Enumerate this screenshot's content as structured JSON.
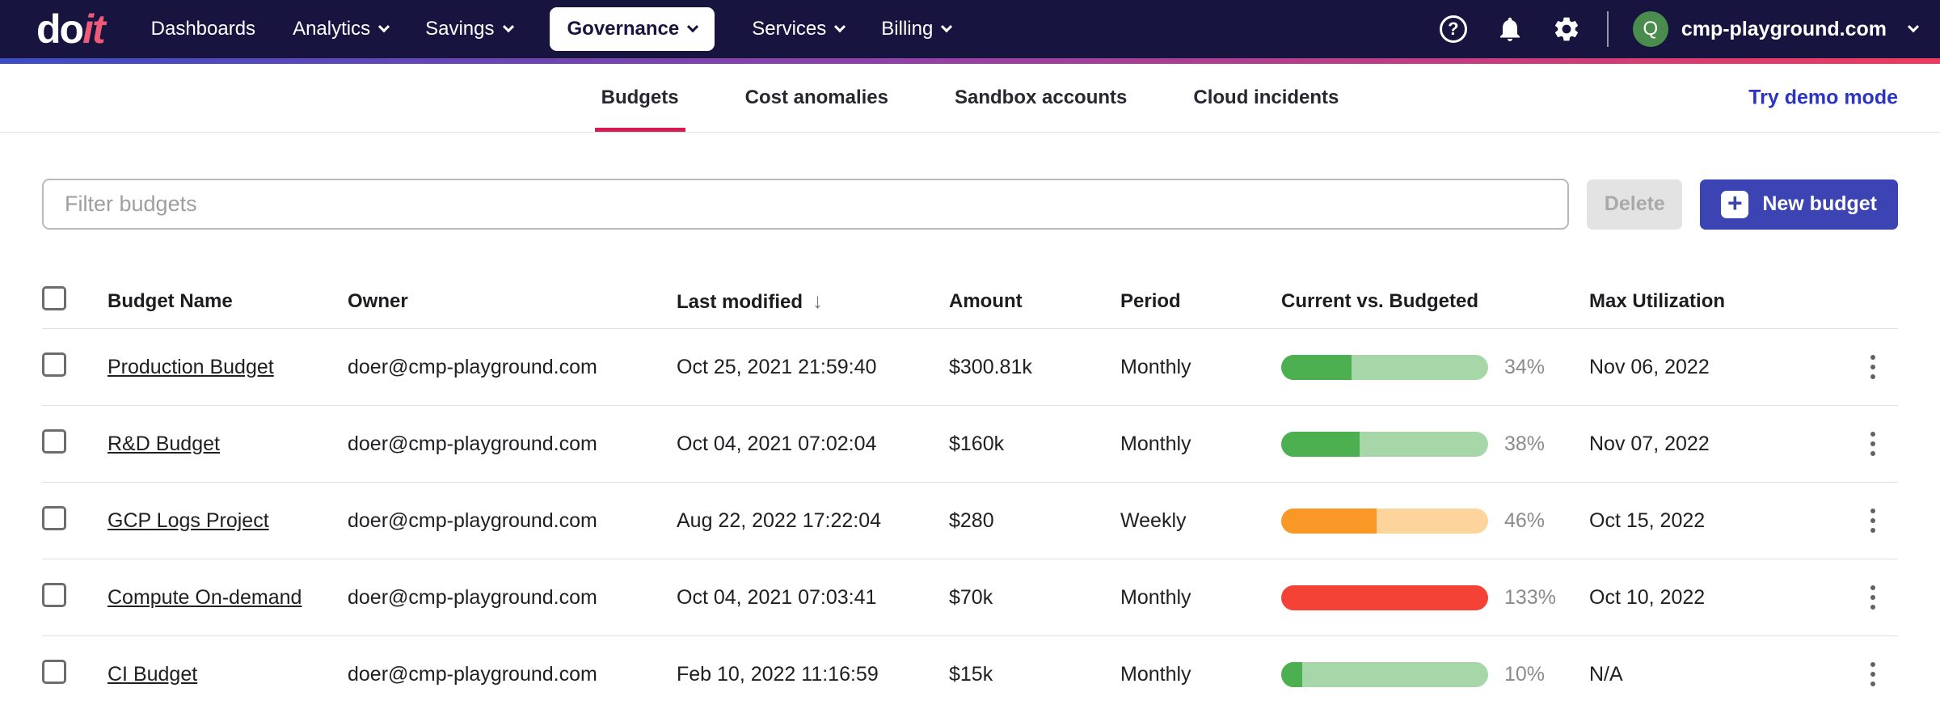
{
  "navbar": {
    "logo": {
      "part1": "do",
      "part2": "it"
    },
    "items": [
      {
        "label": "Dashboards",
        "dropdown": false,
        "active": false
      },
      {
        "label": "Analytics",
        "dropdown": true,
        "active": false
      },
      {
        "label": "Savings",
        "dropdown": true,
        "active": false
      },
      {
        "label": "Governance",
        "dropdown": true,
        "active": true
      },
      {
        "label": "Services",
        "dropdown": true,
        "active": false
      },
      {
        "label": "Billing",
        "dropdown": true,
        "active": false
      }
    ],
    "icons": [
      "help-icon",
      "notifications-bell-icon",
      "settings-gear-icon"
    ],
    "account": {
      "avatar_letter": "Q",
      "name": "cmp-playground.com"
    }
  },
  "tabs": {
    "items": [
      "Budgets",
      "Cost anomalies",
      "Sandbox accounts",
      "Cloud incidents"
    ],
    "active": "Budgets",
    "demo_link": "Try demo mode"
  },
  "toolbar": {
    "filter_placeholder": "Filter budgets",
    "delete_label": "Delete",
    "new_budget_label": "New budget"
  },
  "table": {
    "headers": [
      "Budget Name",
      "Owner",
      "Last modified",
      "Amount",
      "Period",
      "Current vs. Budgeted",
      "Max Utilization"
    ],
    "sort_column": "Last modified",
    "sort_direction": "desc",
    "sort_glyph": "↓",
    "rows": [
      {
        "name": "Production Budget",
        "owner": "doer@cmp-playground.com",
        "last_modified": "Oct 25, 2021 21:59:40",
        "amount": "$300.81k",
        "period": "Monthly",
        "percent": "34%",
        "percent_value": 34,
        "bar_color": "green",
        "max_utilization": "Nov 06, 2022"
      },
      {
        "name": "R&D Budget",
        "owner": "doer@cmp-playground.com",
        "last_modified": "Oct 04, 2021 07:02:04",
        "amount": "$160k",
        "period": "Monthly",
        "percent": "38%",
        "percent_value": 38,
        "bar_color": "green",
        "max_utilization": "Nov 07, 2022"
      },
      {
        "name": "GCP Logs Project",
        "owner": "doer@cmp-playground.com",
        "last_modified": "Aug 22, 2022 17:22:04",
        "amount": "$280",
        "period": "Weekly",
        "percent": "46%",
        "percent_value": 46,
        "bar_color": "orange",
        "max_utilization": "Oct 15, 2022"
      },
      {
        "name": "Compute On-demand",
        "owner": "doer@cmp-playground.com",
        "last_modified": "Oct 04, 2021 07:03:41",
        "amount": "$70k",
        "period": "Monthly",
        "percent": "133%",
        "percent_value": 133,
        "bar_color": "red",
        "max_utilization": "Oct 10, 2022"
      },
      {
        "name": "CI Budget",
        "owner": "doer@cmp-playground.com",
        "last_modified": "Feb 10, 2022 11:16:59",
        "amount": "$15k",
        "period": "Monthly",
        "percent": "10%",
        "percent_value": 10,
        "bar_color": "green",
        "max_utilization": "N/A"
      }
    ]
  },
  "colors": {
    "navbar_bg": "#171440",
    "gradient": [
      "#3c4cc3",
      "#9440a6",
      "#ef3a5f"
    ],
    "logo_accent": "#ee5b76",
    "active_tab_underline": "#da1b52",
    "demo_link": "#2c34c4",
    "primary_button": "#3c44b4",
    "avatar_bg": "#4a8c4e",
    "bars": {
      "green": {
        "fill": "#4caf50",
        "track": "#a7d7a8"
      },
      "orange": {
        "fill": "#fa9827",
        "track": "#fdd59c"
      },
      "red": {
        "fill": "#f44336",
        "track": "#f44336"
      }
    }
  }
}
